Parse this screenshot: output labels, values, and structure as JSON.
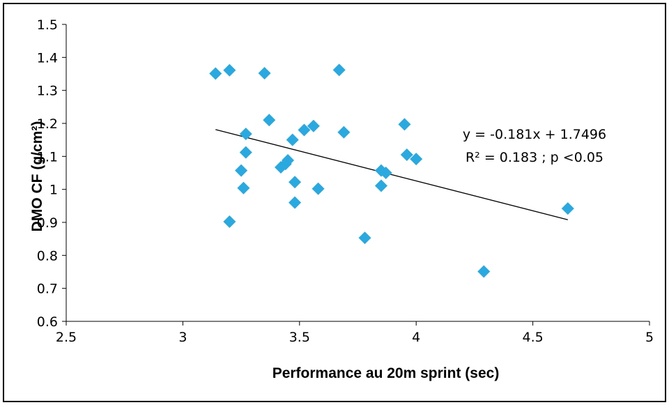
{
  "chart_data": {
    "type": "scatter",
    "title": "",
    "xlabel": "Performance au 20m sprint (sec)",
    "ylabel": "DMO CF (g/cm²)",
    "xlim": [
      2.5,
      5
    ],
    "ylim": [
      0.6,
      1.5
    ],
    "xticks": [
      2.5,
      3,
      3.5,
      4,
      4.5,
      5
    ],
    "yticks": [
      0.6,
      0.7,
      0.8,
      0.9,
      1,
      1.1,
      1.2,
      1.3,
      1.4,
      1.5
    ],
    "xtick_labels": [
      "2.5",
      "3",
      "3.5",
      "4",
      "4.5",
      "5"
    ],
    "ytick_labels": [
      "0.6",
      "0.7",
      "0.8",
      "0.9",
      "1",
      "1.1",
      "1.2",
      "1.3",
      "1.4",
      "1.5"
    ],
    "grid": false,
    "legend": "none",
    "marker": "diamond",
    "marker_color": "#29a9e0",
    "line_color": "#000000",
    "points": [
      {
        "x": 3.14,
        "y": 1.351
      },
      {
        "x": 3.2,
        "y": 1.361
      },
      {
        "x": 3.35,
        "y": 1.352
      },
      {
        "x": 3.67,
        "y": 1.362
      },
      {
        "x": 3.37,
        "y": 1.21
      },
      {
        "x": 3.27,
        "y": 1.168
      },
      {
        "x": 3.47,
        "y": 1.15
      },
      {
        "x": 3.52,
        "y": 1.18
      },
      {
        "x": 3.56,
        "y": 1.192
      },
      {
        "x": 3.69,
        "y": 1.173
      },
      {
        "x": 3.95,
        "y": 1.197
      },
      {
        "x": 3.27,
        "y": 1.112
      },
      {
        "x": 3.25,
        "y": 1.057
      },
      {
        "x": 3.42,
        "y": 1.067
      },
      {
        "x": 3.44,
        "y": 1.077
      },
      {
        "x": 3.45,
        "y": 1.088
      },
      {
        "x": 3.26,
        "y": 1.004
      },
      {
        "x": 3.48,
        "y": 1.022
      },
      {
        "x": 3.58,
        "y": 1.002
      },
      {
        "x": 3.48,
        "y": 0.96
      },
      {
        "x": 3.2,
        "y": 0.902
      },
      {
        "x": 3.85,
        "y": 1.057
      },
      {
        "x": 3.87,
        "y": 1.05
      },
      {
        "x": 3.85,
        "y": 1.011
      },
      {
        "x": 3.96,
        "y": 1.105
      },
      {
        "x": 4.0,
        "y": 1.092
      },
      {
        "x": 3.78,
        "y": 0.853
      },
      {
        "x": 4.29,
        "y": 0.751
      },
      {
        "x": 4.65,
        "y": 0.942
      }
    ],
    "trendline": {
      "slope": -0.181,
      "intercept": 1.7496,
      "x_start": 3.14,
      "x_end": 4.65
    },
    "annotations": [
      "y = -0.181x + 1.7496",
      "R² = 0.183 ; p <0.05"
    ]
  }
}
